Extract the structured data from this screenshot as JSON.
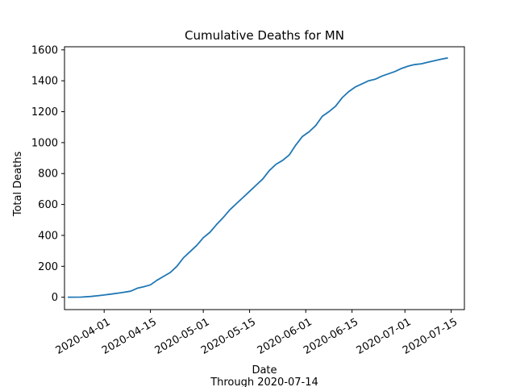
{
  "chart_data": {
    "type": "line",
    "title": "Cumulative Deaths for MN",
    "xlabel": "Date",
    "xlabel_sub": "Through 2020-07-14",
    "ylabel": "Total Deaths",
    "ylim": [
      -80,
      1620
    ],
    "xlim": [
      "2020-03-20",
      "2020-07-19"
    ],
    "y_ticks": [
      0,
      200,
      400,
      600,
      800,
      1000,
      1200,
      1400,
      1600
    ],
    "x_ticks": [
      "2020-04-01",
      "2020-04-15",
      "2020-05-01",
      "2020-05-15",
      "2020-06-01",
      "2020-06-15",
      "2020-07-01",
      "2020-07-15"
    ],
    "grid": false,
    "color": "#1f77b4",
    "series": [
      {
        "x": [
          "2020-03-21",
          "2020-03-25",
          "2020-03-28",
          "2020-03-31",
          "2020-04-03",
          "2020-04-06",
          "2020-04-09",
          "2020-04-11",
          "2020-04-13",
          "2020-04-15",
          "2020-04-17",
          "2020-04-19",
          "2020-04-21",
          "2020-04-23",
          "2020-04-25",
          "2020-04-27",
          "2020-04-29",
          "2020-05-01",
          "2020-05-03",
          "2020-05-05",
          "2020-05-07",
          "2020-05-09",
          "2020-05-11",
          "2020-05-13",
          "2020-05-15",
          "2020-05-17",
          "2020-05-19",
          "2020-05-21",
          "2020-05-23",
          "2020-05-25",
          "2020-05-27",
          "2020-05-29",
          "2020-05-31",
          "2020-06-02",
          "2020-06-04",
          "2020-06-06",
          "2020-06-08",
          "2020-06-10",
          "2020-06-12",
          "2020-06-14",
          "2020-06-16",
          "2020-06-18",
          "2020-06-20",
          "2020-06-22",
          "2020-06-24",
          "2020-06-26",
          "2020-06-28",
          "2020-06-30",
          "2020-07-02",
          "2020-07-04",
          "2020-07-06",
          "2020-07-08",
          "2020-07-10",
          "2020-07-12",
          "2020-07-14"
        ],
        "y": [
          0,
          1,
          5,
          12,
          20,
          29,
          39,
          58,
          68,
          80,
          110,
          135,
          160,
          200,
          255,
          295,
          335,
          385,
          420,
          470,
          515,
          565,
          605,
          645,
          685,
          725,
          765,
          820,
          860,
          885,
          920,
          985,
          1040,
          1070,
          1110,
          1170,
          1200,
          1235,
          1290,
          1330,
          1360,
          1380,
          1400,
          1410,
          1430,
          1445,
          1460,
          1480,
          1495,
          1505,
          1510,
          1520,
          1530,
          1540,
          1548
        ]
      }
    ]
  }
}
